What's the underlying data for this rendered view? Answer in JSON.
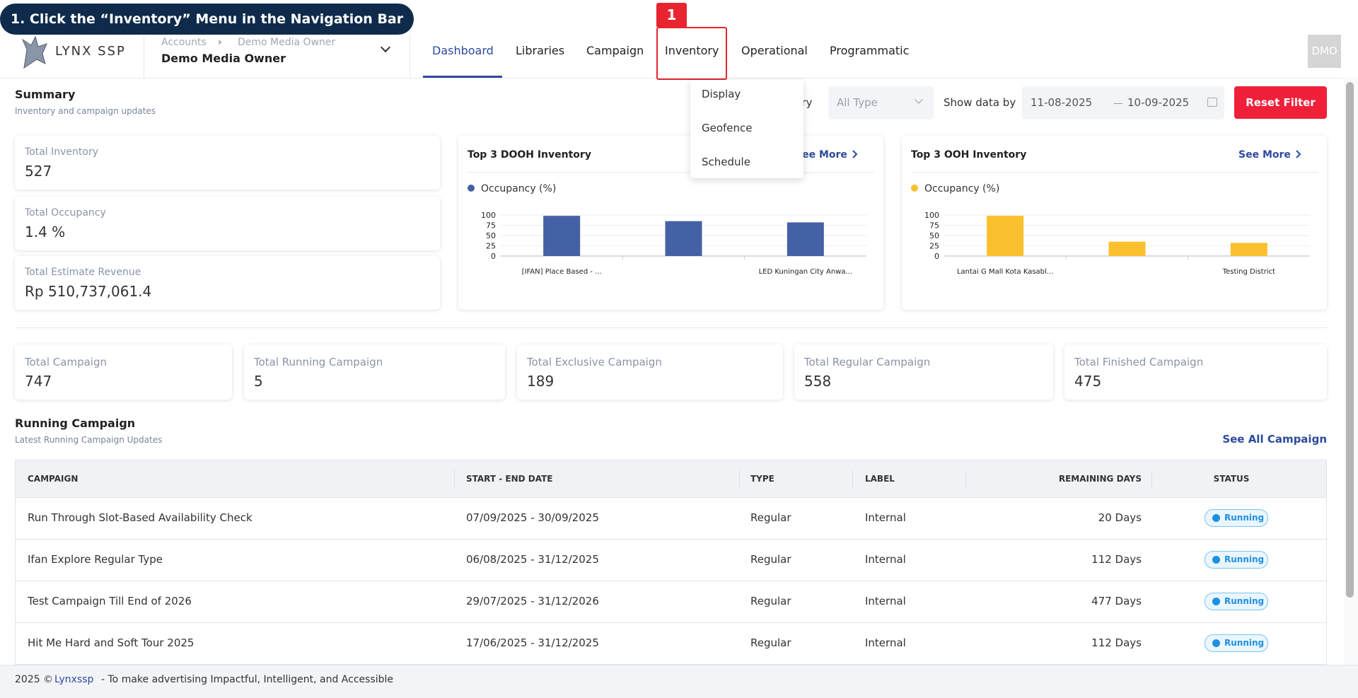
{
  "banner": {
    "instruction": "1. Click the “Inventory” Menu in the Navigation Bar",
    "step": "1"
  },
  "header": {
    "logo": "LYNX SSP",
    "breadcrumb": [
      "Accounts",
      "Demo Media Owner"
    ],
    "account": "Demo Media Owner",
    "nav": [
      "Dashboard",
      "Libraries",
      "Campaign",
      "Inventory",
      "Operational",
      "Programmatic"
    ],
    "avatar": "DMO"
  },
  "inventory_menu": [
    "Display",
    "Geofence",
    "Schedule"
  ],
  "summary": {
    "title": "Summary",
    "subtitle": "Inventory and campaign updates"
  },
  "filters": {
    "category_label": "Category",
    "type_select": "All Type",
    "show_label": "Show data by",
    "start_date": "11-08-2025",
    "end_date": "10-09-2025",
    "reset": "Reset Filter"
  },
  "summary_stats": [
    {
      "label": "Total Inventory",
      "value": "527"
    },
    {
      "label": "Total Occupancy",
      "value": "1.4 %"
    },
    {
      "label": "Total Estimate Revenue",
      "value": "Rp 510,737,061.4"
    }
  ],
  "dooh_chart": {
    "title": "Top 3 DOOH Inventory",
    "see_more": "See More",
    "legend": "Occupancy (%)",
    "color": "#4461a5",
    "categories": [
      "[IFAN] Place Based - ...",
      null,
      "LED Kuningan City Anwa..."
    ],
    "values": [
      98,
      85,
      82
    ],
    "ylim": [
      0,
      100
    ],
    "yticks": [
      0,
      25,
      50,
      75,
      100
    ]
  },
  "ooh_chart": {
    "title": "Top 3 OOH Inventory",
    "see_more": "See More",
    "legend": "Occupancy (%)",
    "color": "#fbc02d",
    "categories": [
      "Lantai G Mall Kota Kasabl...",
      null,
      "Testing District"
    ],
    "values": [
      98,
      35,
      32
    ],
    "ylim": [
      0,
      100
    ],
    "yticks": [
      0,
      25,
      50,
      75,
      100
    ]
  },
  "campaign_stats": [
    {
      "label": "Total Campaign",
      "value": "747"
    },
    {
      "label": "Total Running Campaign",
      "value": "5"
    },
    {
      "label": "Total Exclusive Campaign",
      "value": "189"
    },
    {
      "label": "Total Regular Campaign",
      "value": "558"
    },
    {
      "label": "Total Finished Campaign",
      "value": "475"
    }
  ],
  "running": {
    "title": "Running Campaign",
    "subtitle": "Latest Running Campaign Updates",
    "see_all": "See All Campaign",
    "columns": [
      "CAMPAIGN",
      "START - END DATE",
      "TYPE",
      "LABEL",
      "REMAINING DAYS",
      "STATUS"
    ],
    "rows": [
      [
        "Run Through Slot-Based Availability Check",
        "07/09/2025 - 30/09/2025",
        "Regular",
        "Internal",
        "20 Days",
        "Running"
      ],
      [
        "Ifan Explore Regular Type",
        "06/08/2025 - 31/12/2025",
        "Regular",
        "Internal",
        "112 Days",
        "Running"
      ],
      [
        "Test Campaign Till End of 2026",
        "29/07/2025 - 31/12/2026",
        "Regular",
        "Internal",
        "477 Days",
        "Running"
      ],
      [
        "Hit Me Hard and Soft Tour 2025",
        "17/06/2025 - 31/12/2025",
        "Regular",
        "Internal",
        "112 Days",
        "Running"
      ]
    ]
  },
  "footer": {
    "copyright": "2025 ©",
    "brand": "Lynxssp",
    "tagline": "- To make advertising Impactful, Intelligent, and Accessible"
  }
}
